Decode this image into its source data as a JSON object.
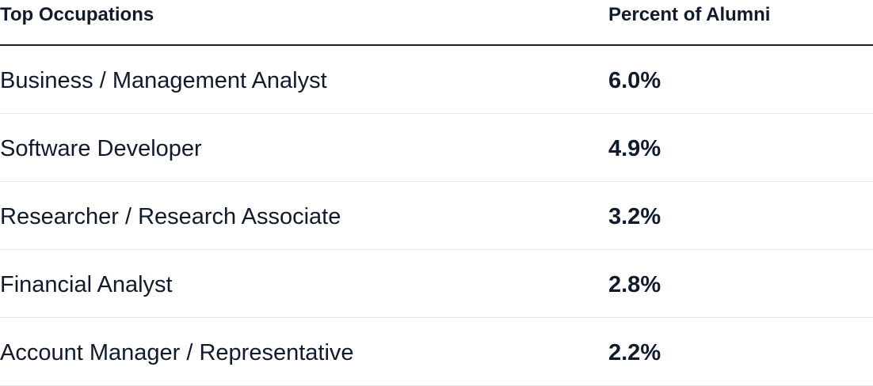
{
  "table": {
    "headers": {
      "occupation": "Top Occupations",
      "percent": "Percent of Alumni"
    },
    "rows": [
      {
        "occupation": "Business / Management Analyst",
        "percent": "6.0%"
      },
      {
        "occupation": "Software Developer",
        "percent": "4.9%"
      },
      {
        "occupation": "Researcher / Research Associate",
        "percent": "3.2%"
      },
      {
        "occupation": "Financial Analyst",
        "percent": "2.8%"
      },
      {
        "occupation": "Account Manager / Representative",
        "percent": "2.2%"
      }
    ]
  },
  "colors": {
    "text": "#0f1b2d",
    "header_rule": "#1a2230",
    "row_divider": "#e6e6e6",
    "background": "#ffffff"
  }
}
